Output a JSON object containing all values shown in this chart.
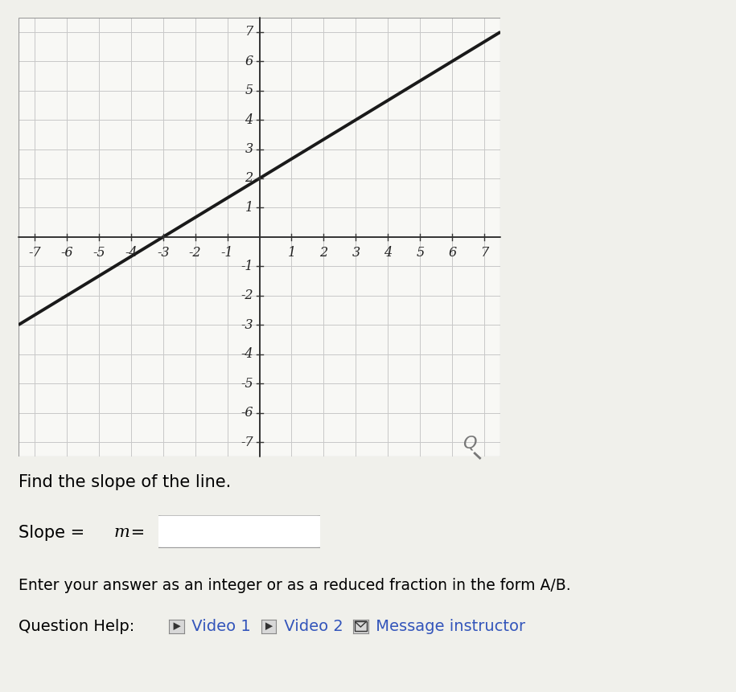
{
  "xlim": [
    -7.5,
    7.5
  ],
  "ylim": [
    -7.5,
    7.5
  ],
  "xticks": [
    -7,
    -6,
    -5,
    -4,
    -3,
    -2,
    -1,
    1,
    2,
    3,
    4,
    5,
    6,
    7
  ],
  "yticks": [
    -7,
    -6,
    -5,
    -4,
    -3,
    -2,
    -1,
    1,
    2,
    3,
    4,
    5,
    6,
    7
  ],
  "line_y_slope": 0.6667,
  "line_y_intercept": 2.0,
  "line_color": "#1a1a1a",
  "line_width": 2.8,
  "grid_color": "#c8c8c8",
  "bg_color": "#f8f8f5",
  "page_bg": "#f0f0eb",
  "axis_color": "#333333",
  "find_slope_text": "Find the slope of the line.",
  "slope_prefix": "Slope = ",
  "slope_m": "m",
  "slope_suffix": " =",
  "enter_answer_text": "Enter your answer as an integer or as a reduced fraction in the form A/B.",
  "question_help_prefix": "Question Help:",
  "video1_text": " Video 1",
  "video2_text": " Video 2",
  "message_text": " Message instructor",
  "tick_fontsize": 11.5,
  "label_fontsize": 15,
  "help_fontsize": 14
}
